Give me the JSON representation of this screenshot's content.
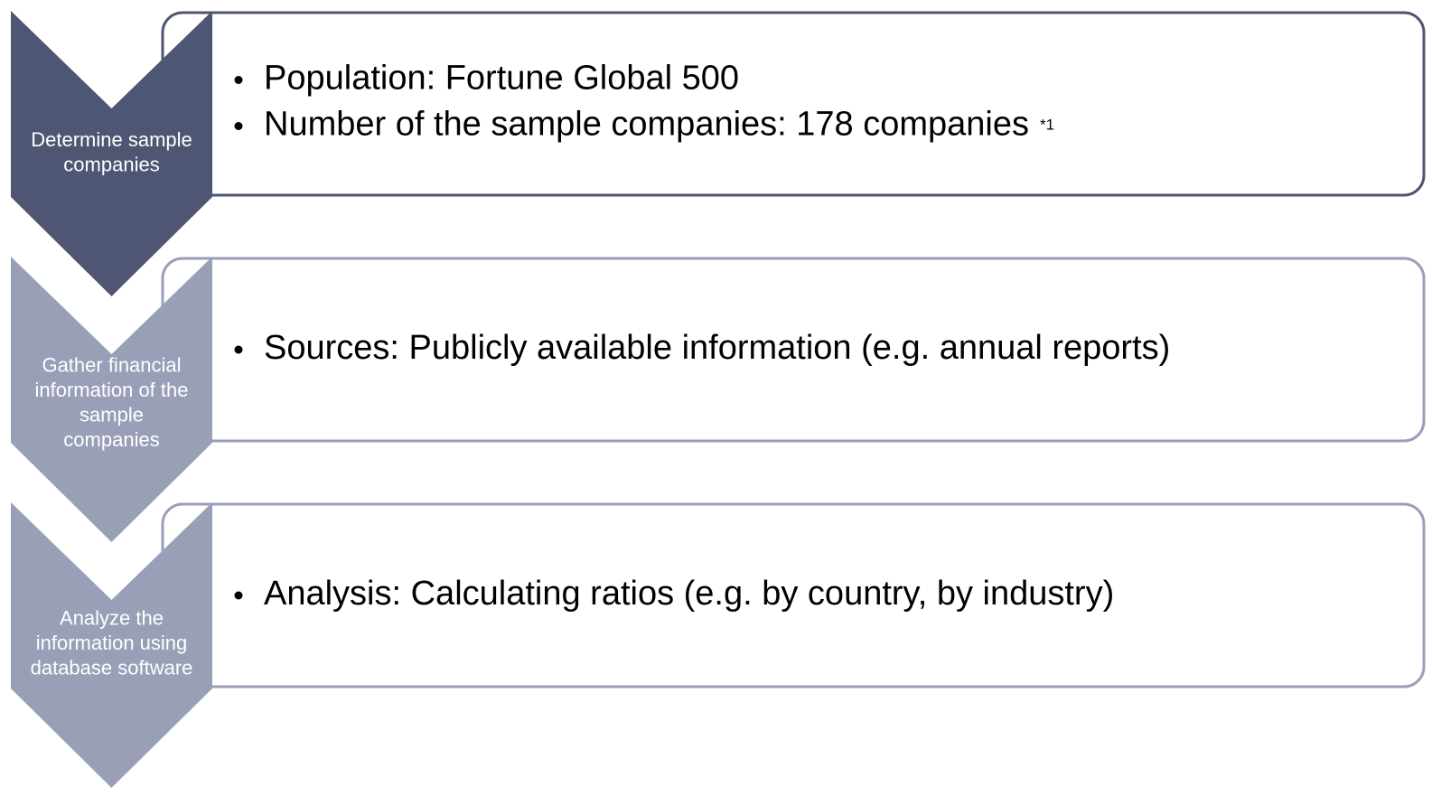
{
  "steps": [
    {
      "label": [
        "Determine sample",
        "companies"
      ],
      "bullets": [
        {
          "text": "Population: Fortune Global 500"
        },
        {
          "text": "Number of the sample companies: 178 companies",
          "note": "*1"
        }
      ]
    },
    {
      "label": [
        "Gather financial",
        "information of the",
        "sample",
        "companies"
      ],
      "bullets": [
        {
          "text": "Sources: Publicly available information (e.g. annual reports)"
        }
      ]
    },
    {
      "label": [
        "Analyze the",
        "information using",
        "database software"
      ],
      "bullets": [
        {
          "text": "Analysis: Calculating ratios (e.g. by country, by industry)"
        }
      ]
    }
  ]
}
